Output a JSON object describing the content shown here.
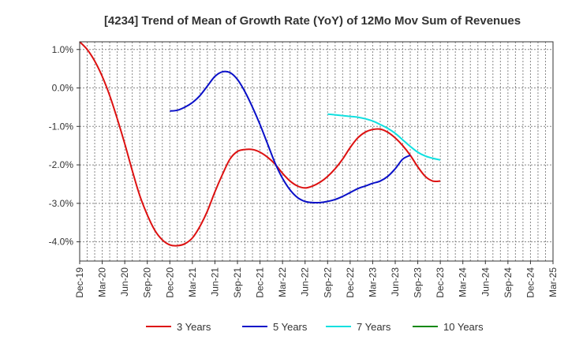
{
  "chart_data": {
    "type": "line",
    "title": "[4234]  Trend of Mean of Growth Rate (YoY) of 12Mo Mov Sum of Revenues",
    "xlabel": "",
    "ylabel": "",
    "ylim": [
      -4.5,
      1.2
    ],
    "yticks": [
      1.0,
      0.0,
      -1.0,
      -2.0,
      -3.0,
      -4.0
    ],
    "ytick_labels": [
      "1.0%",
      "0.0%",
      "-1.0%",
      "-2.0%",
      "-3.0%",
      "-4.0%"
    ],
    "x_tick_labels": [
      "Dec-19",
      "Mar-20",
      "Jun-20",
      "Sep-20",
      "Dec-20",
      "Mar-21",
      "Jun-21",
      "Sep-21",
      "Dec-21",
      "Mar-22",
      "Jun-22",
      "Sep-22",
      "Dec-22",
      "Mar-23",
      "Jun-23",
      "Sep-23",
      "Dec-23",
      "Mar-24",
      "Jun-24",
      "Sep-24",
      "Dec-24",
      "Mar-25"
    ],
    "grid": true,
    "legend_position": "bottom",
    "series": [
      {
        "name": "3 Years",
        "color": "#dd1111",
        "start_index": 0,
        "values": [
          1.2,
          1.0,
          0.7,
          0.3,
          -0.2,
          -0.8,
          -1.45,
          -2.15,
          -2.8,
          -3.3,
          -3.7,
          -3.95,
          -4.08,
          -4.1,
          -4.05,
          -3.9,
          -3.6,
          -3.2,
          -2.7,
          -2.25,
          -1.85,
          -1.65,
          -1.6,
          -1.6,
          -1.67,
          -1.8,
          -1.98,
          -2.22,
          -2.42,
          -2.55,
          -2.6,
          -2.55,
          -2.45,
          -2.3,
          -2.1,
          -1.85,
          -1.55,
          -1.3,
          -1.15,
          -1.08,
          -1.07,
          -1.15,
          -1.3,
          -1.5,
          -1.75,
          -2.05,
          -2.3,
          -2.42,
          -2.42
        ]
      },
      {
        "name": "5 Years",
        "color": "#0a10c8",
        "start_index": 12,
        "values": [
          -0.6,
          -0.58,
          -0.5,
          -0.38,
          -0.2,
          0.05,
          0.3,
          0.42,
          0.4,
          0.22,
          -0.1,
          -0.5,
          -0.95,
          -1.45,
          -1.95,
          -2.35,
          -2.65,
          -2.85,
          -2.95,
          -2.98,
          -2.98,
          -2.95,
          -2.9,
          -2.82,
          -2.72,
          -2.62,
          -2.55,
          -2.48,
          -2.42,
          -2.3,
          -2.1,
          -1.85,
          -1.75
        ]
      },
      {
        "name": "7 Years",
        "color": "#11e0e0",
        "start_index": 33,
        "values": [
          -0.68,
          -0.7,
          -0.72,
          -0.74,
          -0.76,
          -0.8,
          -0.86,
          -0.95,
          -1.05,
          -1.18,
          -1.35,
          -1.52,
          -1.67,
          -1.77,
          -1.83,
          -1.87
        ]
      },
      {
        "name": "10 Years",
        "color": "#118811",
        "start_index": 0,
        "values": []
      }
    ]
  }
}
